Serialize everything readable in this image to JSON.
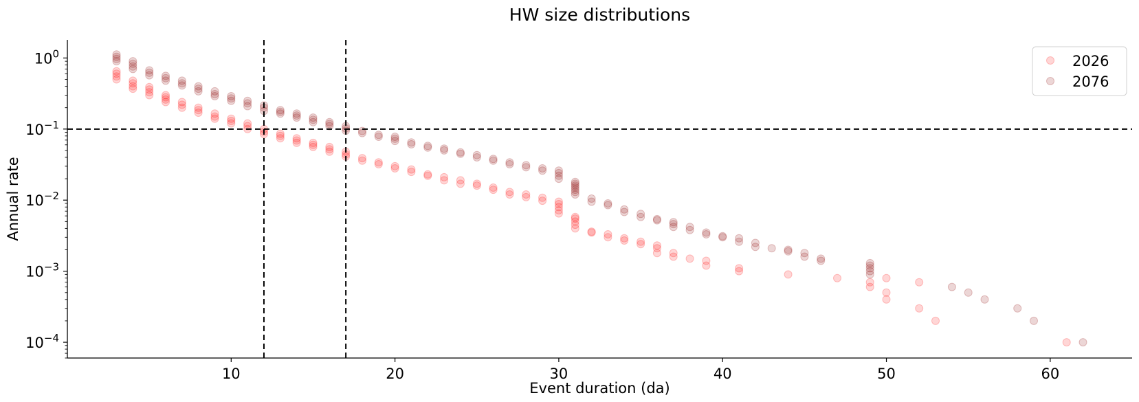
{
  "chart_data": {
    "type": "scatter",
    "title": "HW size distributions",
    "xlabel": "Event duration (da)",
    "ylabel": "Annual rate",
    "xlim": [
      0,
      65
    ],
    "ylim": [
      6e-05,
      1.8
    ],
    "yscale": "log",
    "x_ticks": [
      10,
      20,
      30,
      40,
      50,
      60
    ],
    "y_ticks": [
      {
        "value": 1,
        "base": "10",
        "exp": "0"
      },
      {
        "value": 0.1,
        "base": "10",
        "exp": "−1"
      },
      {
        "value": 0.01,
        "base": "10",
        "exp": "−2"
      },
      {
        "value": 0.001,
        "base": "10",
        "exp": "−3"
      },
      {
        "value": 0.0001,
        "base": "10",
        "exp": "−4"
      }
    ],
    "reference_lines": {
      "vertical_x": [
        12,
        17
      ],
      "horizontal_y": [
        0.1
      ]
    },
    "legend_position": "top-right",
    "grid": false,
    "series": [
      {
        "name": "2026",
        "color": "#ff0000",
        "points": [
          [
            3,
            0.5
          ],
          [
            3,
            0.55
          ],
          [
            3,
            0.6
          ],
          [
            3,
            0.65
          ],
          [
            4,
            0.37
          ],
          [
            4,
            0.4
          ],
          [
            4,
            0.44
          ],
          [
            4,
            0.48
          ],
          [
            5,
            0.3
          ],
          [
            5,
            0.33
          ],
          [
            5,
            0.36
          ],
          [
            5,
            0.39
          ],
          [
            6,
            0.24
          ],
          [
            6,
            0.26
          ],
          [
            6,
            0.28
          ],
          [
            6,
            0.3
          ],
          [
            7,
            0.2
          ],
          [
            7,
            0.22
          ],
          [
            7,
            0.24
          ],
          [
            8,
            0.17
          ],
          [
            8,
            0.185
          ],
          [
            8,
            0.2
          ],
          [
            9,
            0.14
          ],
          [
            9,
            0.15
          ],
          [
            9,
            0.165
          ],
          [
            10,
            0.12
          ],
          [
            10,
            0.13
          ],
          [
            10,
            0.14
          ],
          [
            11,
            0.1
          ],
          [
            11,
            0.11
          ],
          [
            11,
            0.12
          ],
          [
            12,
            0.085
          ],
          [
            12,
            0.092
          ],
          [
            12,
            0.1
          ],
          [
            13,
            0.074
          ],
          [
            13,
            0.08
          ],
          [
            13,
            0.086
          ],
          [
            14,
            0.064
          ],
          [
            14,
            0.069
          ],
          [
            14,
            0.074
          ],
          [
            15,
            0.056
          ],
          [
            15,
            0.06
          ],
          [
            15,
            0.064
          ],
          [
            16,
            0.048
          ],
          [
            16,
            0.052
          ],
          [
            16,
            0.056
          ],
          [
            17,
            0.041
          ],
          [
            17,
            0.044
          ],
          [
            17,
            0.048
          ],
          [
            18,
            0.036
          ],
          [
            18,
            0.039
          ],
          [
            19,
            0.032
          ],
          [
            19,
            0.034
          ],
          [
            20,
            0.028
          ],
          [
            20,
            0.03
          ],
          [
            21,
            0.025
          ],
          [
            21,
            0.027
          ],
          [
            22,
            0.022
          ],
          [
            22,
            0.023
          ],
          [
            23,
            0.019
          ],
          [
            23,
            0.021
          ],
          [
            24,
            0.017
          ],
          [
            24,
            0.019
          ],
          [
            25,
            0.016
          ],
          [
            25,
            0.017
          ],
          [
            26,
            0.014
          ],
          [
            26,
            0.015
          ],
          [
            27,
            0.012
          ],
          [
            27,
            0.013
          ],
          [
            28,
            0.011
          ],
          [
            28,
            0.012
          ],
          [
            29,
            0.0098
          ],
          [
            29,
            0.0108
          ],
          [
            30,
            0.0065
          ],
          [
            30,
            0.0072
          ],
          [
            30,
            0.008
          ],
          [
            30,
            0.0088
          ],
          [
            30,
            0.0095
          ],
          [
            31,
            0.004
          ],
          [
            31,
            0.0045
          ],
          [
            31,
            0.005
          ],
          [
            31,
            0.0055
          ],
          [
            31,
            0.0058
          ],
          [
            32,
            0.0035
          ],
          [
            32,
            0.0036
          ],
          [
            33,
            0.003
          ],
          [
            33,
            0.0033
          ],
          [
            34,
            0.0027
          ],
          [
            34,
            0.0029
          ],
          [
            35,
            0.0024
          ],
          [
            35,
            0.0026
          ],
          [
            36,
            0.0018
          ],
          [
            36,
            0.0021
          ],
          [
            36,
            0.0023
          ],
          [
            37,
            0.0016
          ],
          [
            37,
            0.0018
          ],
          [
            38,
            0.0015
          ],
          [
            39,
            0.0012
          ],
          [
            39,
            0.0014
          ],
          [
            41,
            0.001
          ],
          [
            41,
            0.0011
          ],
          [
            44,
            0.0009
          ],
          [
            47,
            0.0008
          ],
          [
            49,
            0.0006
          ],
          [
            49,
            0.0007
          ],
          [
            50,
            0.0004
          ],
          [
            50,
            0.0005
          ],
          [
            50,
            0.0008
          ],
          [
            52,
            0.0003
          ],
          [
            52,
            0.0007
          ],
          [
            53,
            0.0002
          ],
          [
            61,
            0.0001
          ]
        ]
      },
      {
        "name": "2076",
        "color": "#8b0000",
        "points": [
          [
            3,
            0.9
          ],
          [
            3,
            0.97
          ],
          [
            3,
            1.04
          ],
          [
            3,
            1.12
          ],
          [
            4,
            0.7
          ],
          [
            4,
            0.76
          ],
          [
            4,
            0.83
          ],
          [
            4,
            0.9
          ],
          [
            5,
            0.57
          ],
          [
            5,
            0.62
          ],
          [
            5,
            0.67
          ],
          [
            6,
            0.48
          ],
          [
            6,
            0.52
          ],
          [
            6,
            0.56
          ],
          [
            7,
            0.41
          ],
          [
            7,
            0.44
          ],
          [
            7,
            0.48
          ],
          [
            8,
            0.34
          ],
          [
            8,
            0.37
          ],
          [
            8,
            0.4
          ],
          [
            9,
            0.29
          ],
          [
            9,
            0.31
          ],
          [
            9,
            0.34
          ],
          [
            10,
            0.25
          ],
          [
            10,
            0.27
          ],
          [
            10,
            0.29
          ],
          [
            11,
            0.21
          ],
          [
            11,
            0.23
          ],
          [
            11,
            0.25
          ],
          [
            12,
            0.18
          ],
          [
            12,
            0.2
          ],
          [
            12,
            0.215
          ],
          [
            13,
            0.165
          ],
          [
            13,
            0.175
          ],
          [
            13,
            0.185
          ],
          [
            14,
            0.145
          ],
          [
            14,
            0.155
          ],
          [
            14,
            0.165
          ],
          [
            15,
            0.125
          ],
          [
            15,
            0.135
          ],
          [
            15,
            0.145
          ],
          [
            16,
            0.11
          ],
          [
            16,
            0.118
          ],
          [
            16,
            0.125
          ],
          [
            17,
            0.095
          ],
          [
            17,
            0.102
          ],
          [
            17,
            0.11
          ],
          [
            18,
            0.088
          ],
          [
            18,
            0.094
          ],
          [
            19,
            0.078
          ],
          [
            19,
            0.083
          ],
          [
            20,
            0.068
          ],
          [
            20,
            0.073
          ],
          [
            20,
            0.078
          ],
          [
            21,
            0.061
          ],
          [
            21,
            0.065
          ],
          [
            22,
            0.055
          ],
          [
            22,
            0.058
          ],
          [
            23,
            0.05
          ],
          [
            23,
            0.053
          ],
          [
            24,
            0.045
          ],
          [
            24,
            0.047
          ],
          [
            25,
            0.04
          ],
          [
            25,
            0.043
          ],
          [
            26,
            0.036
          ],
          [
            26,
            0.038
          ],
          [
            27,
            0.032
          ],
          [
            27,
            0.034
          ],
          [
            28,
            0.029
          ],
          [
            28,
            0.031
          ],
          [
            29,
            0.026
          ],
          [
            29,
            0.028
          ],
          [
            30,
            0.02
          ],
          [
            30,
            0.022
          ],
          [
            30,
            0.024
          ],
          [
            30,
            0.026
          ],
          [
            31,
            0.012
          ],
          [
            31,
            0.013
          ],
          [
            31,
            0.014
          ],
          [
            31,
            0.015
          ],
          [
            31,
            0.016
          ],
          [
            31,
            0.017
          ],
          [
            31,
            0.018
          ],
          [
            32,
            0.0095
          ],
          [
            32,
            0.0105
          ],
          [
            33,
            0.0085
          ],
          [
            33,
            0.009
          ],
          [
            34,
            0.0068
          ],
          [
            34,
            0.0074
          ],
          [
            35,
            0.0058
          ],
          [
            35,
            0.0064
          ],
          [
            36,
            0.0052
          ],
          [
            36,
            0.0054
          ],
          [
            37,
            0.0042
          ],
          [
            37,
            0.0046
          ],
          [
            37,
            0.0049
          ],
          [
            38,
            0.0038
          ],
          [
            38,
            0.0042
          ],
          [
            39,
            0.0033
          ],
          [
            39,
            0.0035
          ],
          [
            40,
            0.003
          ],
          [
            40,
            0.0031
          ],
          [
            41,
            0.0026
          ],
          [
            41,
            0.0029
          ],
          [
            42,
            0.0022
          ],
          [
            42,
            0.0025
          ],
          [
            43,
            0.0021
          ],
          [
            44,
            0.0019
          ],
          [
            44,
            0.002
          ],
          [
            45,
            0.0016
          ],
          [
            45,
            0.0018
          ],
          [
            46,
            0.0014
          ],
          [
            46,
            0.0015
          ],
          [
            49,
            0.0009
          ],
          [
            49,
            0.001
          ],
          [
            49,
            0.0011
          ],
          [
            49,
            0.0012
          ],
          [
            49,
            0.0013
          ],
          [
            54,
            0.0006
          ],
          [
            55,
            0.0005
          ],
          [
            56,
            0.0004
          ],
          [
            58,
            0.0003
          ],
          [
            59,
            0.0002
          ],
          [
            62,
            0.0001
          ]
        ]
      }
    ]
  }
}
